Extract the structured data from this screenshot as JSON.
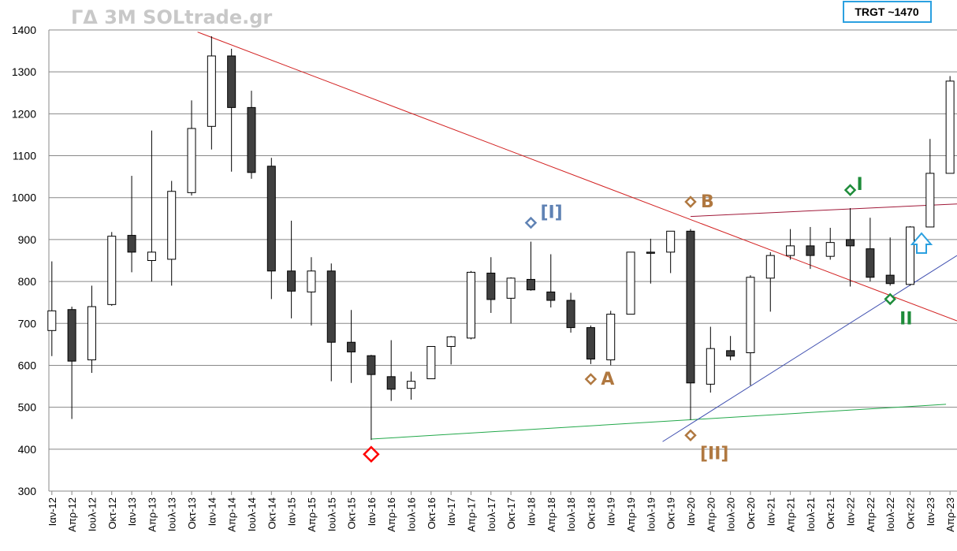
{
  "chart_data": {
    "type": "candlestick",
    "title": "ΓΔ 3M SOLtrade.gr",
    "target_label": "TRGT ~1470",
    "ylim": [
      300,
      1400
    ],
    "yticks": [
      300,
      400,
      500,
      600,
      700,
      800,
      900,
      1000,
      1100,
      1200,
      1300,
      1400
    ],
    "grid": "horizontal",
    "categories": [
      "Ιαν-12",
      "Απρ-12",
      "Ιουλ-12",
      "Οκτ-12",
      "Ιαν-13",
      "Απρ-13",
      "Ιουλ-13",
      "Οκτ-13",
      "Ιαν-14",
      "Απρ-14",
      "Ιουλ-14",
      "Οκτ-14",
      "Ιαν-15",
      "Απρ-15",
      "Ιουλ-15",
      "Οκτ-15",
      "Ιαν-16",
      "Απρ-16",
      "Ιουλ-16",
      "Οκτ-16",
      "Ιαν-17",
      "Απρ-17",
      "Ιουλ-17",
      "Οκτ-17",
      "Ιαν-18",
      "Απρ-18",
      "Ιουλ-18",
      "Οκτ-18",
      "Ιαν-19",
      "Απρ-19",
      "Ιουλ-19",
      "Οκτ-19",
      "Ιαν-20",
      "Απρ-20",
      "Ιουλ-20",
      "Οκτ-20",
      "Ιαν-21",
      "Απρ-21",
      "Ιουλ-21",
      "Οκτ-21",
      "Ιαν-22",
      "Απρ-22",
      "Ιουλ-22",
      "Οκτ-22",
      "Ιαν-23",
      "Απρ-23"
    ],
    "open": [
      683,
      733,
      613,
      745,
      910,
      850,
      853,
      1012,
      1170,
      1338,
      1215,
      1075,
      825,
      775,
      825,
      655,
      623,
      573,
      545,
      568,
      645,
      665,
      820,
      760,
      805,
      775,
      755,
      690,
      613,
      722,
      870,
      870,
      920,
      555,
      635,
      630,
      808,
      862,
      885,
      860,
      900,
      878,
      815,
      793,
      930,
      1058
    ],
    "high": [
      848,
      740,
      790,
      918,
      1052,
      1160,
      1040,
      1232,
      1385,
      1355,
      1255,
      1095,
      945,
      858,
      843,
      732,
      625,
      660,
      585,
      645,
      670,
      825,
      858,
      810,
      895,
      865,
      773,
      695,
      730,
      870,
      902,
      920,
      925,
      692,
      670,
      815,
      870,
      925,
      930,
      928,
      975,
      952,
      905,
      932,
      1140,
      1290
    ],
    "low": [
      622,
      472,
      582,
      742,
      822,
      800,
      790,
      1005,
      1115,
      1062,
      1045,
      758,
      712,
      695,
      562,
      558,
      422,
      515,
      518,
      568,
      602,
      662,
      725,
      700,
      778,
      738,
      678,
      603,
      600,
      722,
      795,
      820,
      470,
      535,
      612,
      552,
      728,
      852,
      830,
      852,
      788,
      800,
      790,
      790,
      930,
      1058
    ],
    "close": [
      730,
      610,
      740,
      908,
      870,
      870,
      1015,
      1165,
      1338,
      1215,
      1060,
      825,
      777,
      825,
      655,
      632,
      578,
      543,
      562,
      645,
      668,
      822,
      757,
      808,
      780,
      755,
      690,
      615,
      722,
      870,
      868,
      920,
      558,
      640,
      622,
      810,
      862,
      885,
      862,
      893,
      885,
      810,
      795,
      930,
      1058,
      1278
    ],
    "markers": [
      {
        "label": "",
        "color": "#ff0000",
        "cat": 16,
        "value": 388,
        "size": "large"
      },
      {
        "label": "[I]",
        "color": "#5f82b4",
        "cat": 24,
        "value": 940,
        "size": "small"
      },
      {
        "label": "A",
        "color": "#b07840",
        "cat": 27,
        "value": 567,
        "size": "small"
      },
      {
        "label": "B",
        "color": "#b07840",
        "cat": 32,
        "value": 990,
        "size": "small"
      },
      {
        "label": "[II]",
        "color": "#b07840",
        "cat": 32,
        "value": 433,
        "size": "small"
      },
      {
        "label": "I",
        "color": "#1e8c3a",
        "cat": 40,
        "value": 1018,
        "size": "small"
      },
      {
        "label": "II",
        "color": "#1e8c3a",
        "cat": 42,
        "value": 758,
        "size": "small"
      }
    ]
  }
}
